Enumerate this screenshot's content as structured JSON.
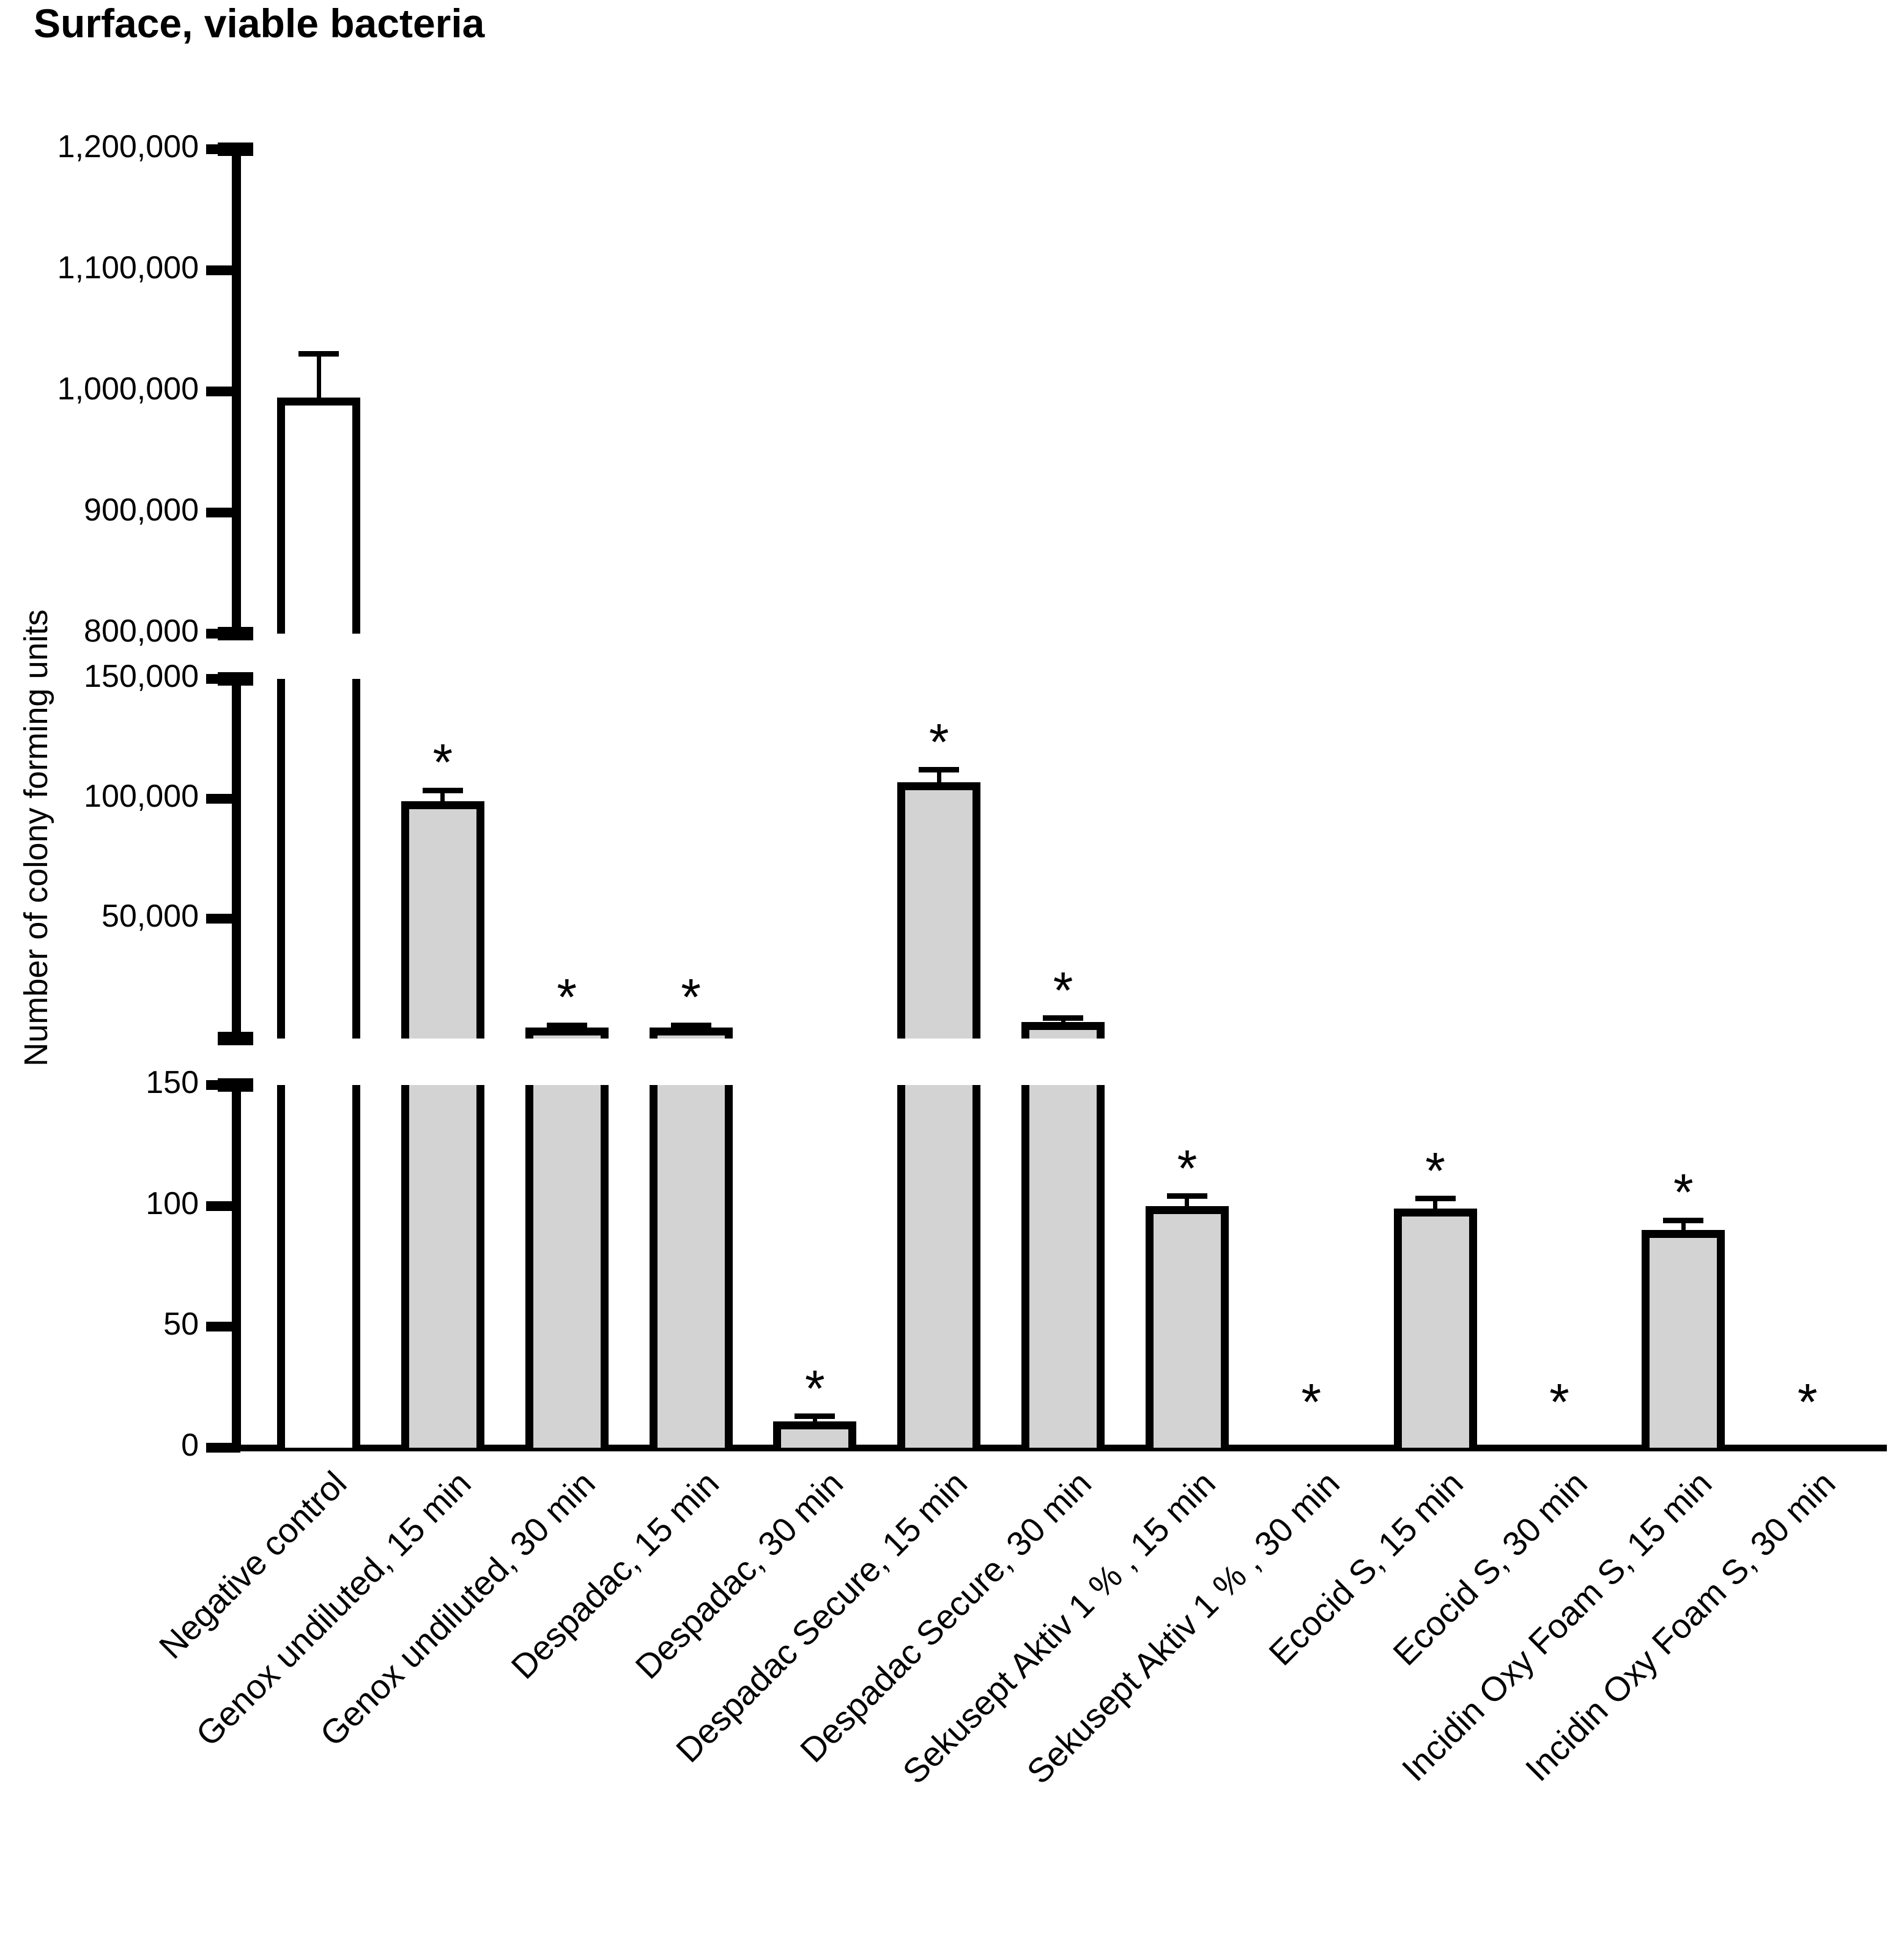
{
  "title": "Surface, viable bacteria",
  "y_axis_label": "Number of colony forming units",
  "significance_marker": "*",
  "colors": {
    "ink": "#000000",
    "bar_fill": "#d3d3d3",
    "control_fill": "#ffffff",
    "background": "#ffffff"
  },
  "chart_data": {
    "type": "bar",
    "title": "Surface, viable bacteria",
    "xlabel": "",
    "ylabel": "Number of colony forming units",
    "grid": false,
    "legend": null,
    "broken_axis": true,
    "axis_segments": [
      {
        "ylim": [
          800000,
          1200000
        ],
        "ticks": [
          1200000,
          1100000,
          1000000,
          900000,
          800000
        ]
      },
      {
        "ylim": [
          0,
          150000
        ],
        "ticks": [
          150000,
          100000,
          50000
        ]
      },
      {
        "ylim": [
          0,
          150
        ],
        "ticks": [
          150,
          100,
          50,
          0
        ]
      }
    ],
    "categories": [
      "Negative control",
      "Genox undiluted, 15 min",
      "Genox undiluted, 30 min",
      "Despadac, 15 min",
      "Despadac, 30 min",
      "Despadac Secure, 15 min",
      "Despadac Secure, 30 min",
      "Sekusept Aktiv 1 % , 15 min",
      "Sekusept Aktiv 1 % , 30 min",
      "Ecocid S, 15 min",
      "Ecocid S, 30 min",
      "Incidin Oxy Foam S, 15 min",
      "Incidin Oxy Foam S, 30 min"
    ],
    "values": [
      995000,
      99000,
      4500,
      4500,
      11,
      107000,
      7000,
      100,
      0,
      99,
      0,
      90,
      0
    ],
    "error_top": [
      1031000,
      103500,
      5500,
      5500,
      13,
      112000,
      8500,
      104,
      null,
      103,
      null,
      94,
      null
    ],
    "significant": [
      false,
      true,
      true,
      true,
      true,
      true,
      true,
      true,
      true,
      true,
      true,
      true,
      true
    ],
    "bar_styles": [
      "control",
      "treatment",
      "treatment",
      "treatment",
      "treatment",
      "treatment",
      "treatment",
      "treatment",
      "treatment",
      "treatment",
      "treatment",
      "treatment",
      "treatment"
    ]
  }
}
